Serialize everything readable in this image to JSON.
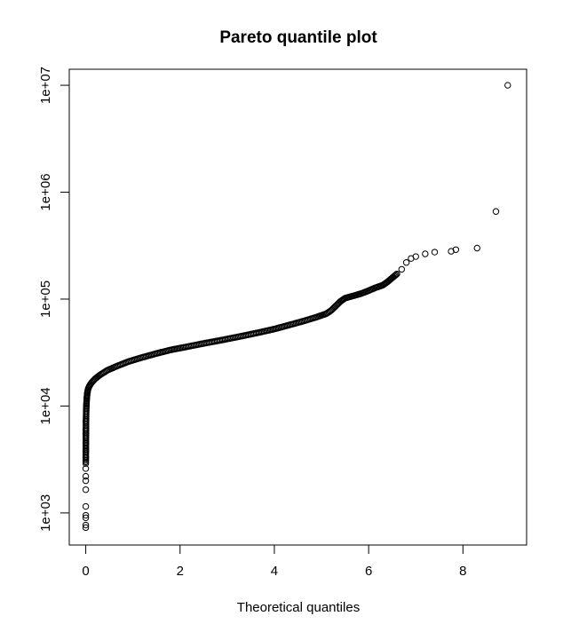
{
  "chart_data": {
    "type": "scatter",
    "title": "Pareto quantile plot",
    "xlabel": "Theoretical quantiles",
    "ylabel": "",
    "xlim": [
      -0.35,
      9.35
    ],
    "ylim_log10": [
      2.7,
      7.15
    ],
    "y_scale": "log",
    "x_ticks": [
      0,
      2,
      4,
      6,
      8
    ],
    "x_tick_labels": [
      "0",
      "2",
      "4",
      "6",
      "8"
    ],
    "y_ticks": [
      1000,
      10000,
      100000,
      1000000,
      10000000
    ],
    "y_tick_labels": [
      "1e+03",
      "1e+04",
      "1e+05",
      "1e+06",
      "1e+07"
    ],
    "marker": "open-circle",
    "grid": false,
    "curve": {
      "description": "dense body of sample points",
      "x": [
        0.0,
        0.005,
        0.01,
        0.02,
        0.03,
        0.05,
        0.08,
        0.12,
        0.2,
        0.3,
        0.45,
        0.65,
        0.9,
        1.2,
        1.5,
        1.8,
        2.1,
        2.5,
        2.9,
        3.3,
        3.7,
        4.0,
        4.3,
        4.6,
        4.9,
        5.1,
        5.2,
        5.3,
        5.4,
        5.5,
        5.6,
        5.7,
        5.85,
        6.0,
        6.15,
        6.3,
        6.4,
        6.5,
        6.6
      ],
      "y": [
        3000,
        7000,
        9500,
        11500,
        13000,
        14500,
        15500,
        16500,
        18000,
        19500,
        21500,
        23500,
        26000,
        28500,
        31000,
        33500,
        35500,
        38500,
        41500,
        45000,
        49000,
        52500,
        57000,
        62000,
        68000,
        73000,
        78000,
        86000,
        95000,
        102000,
        105000,
        108000,
        113000,
        120000,
        128000,
        135000,
        145000,
        158000,
        172000
      ]
    },
    "extra_points": {
      "x": [
        0.0,
        0.0,
        0.0,
        0.0,
        0.0,
        0.0,
        0.0,
        0.0,
        0.0,
        0.0,
        0.0,
        0.0,
        0.0,
        0.0,
        0.0,
        0.0,
        6.7,
        6.8,
        6.9,
        7.0,
        7.2,
        7.4,
        7.75,
        7.85,
        8.3,
        8.7,
        8.95
      ],
      "y": [
        730,
        770,
        900,
        950,
        1150,
        1650,
        2000,
        2200,
        2600,
        2900,
        3300,
        3800,
        4500,
        5500,
        6000,
        7200,
        190000,
        220000,
        240000,
        250000,
        265000,
        275000,
        280000,
        290000,
        300000,
        660000,
        10000000
      ]
    }
  }
}
